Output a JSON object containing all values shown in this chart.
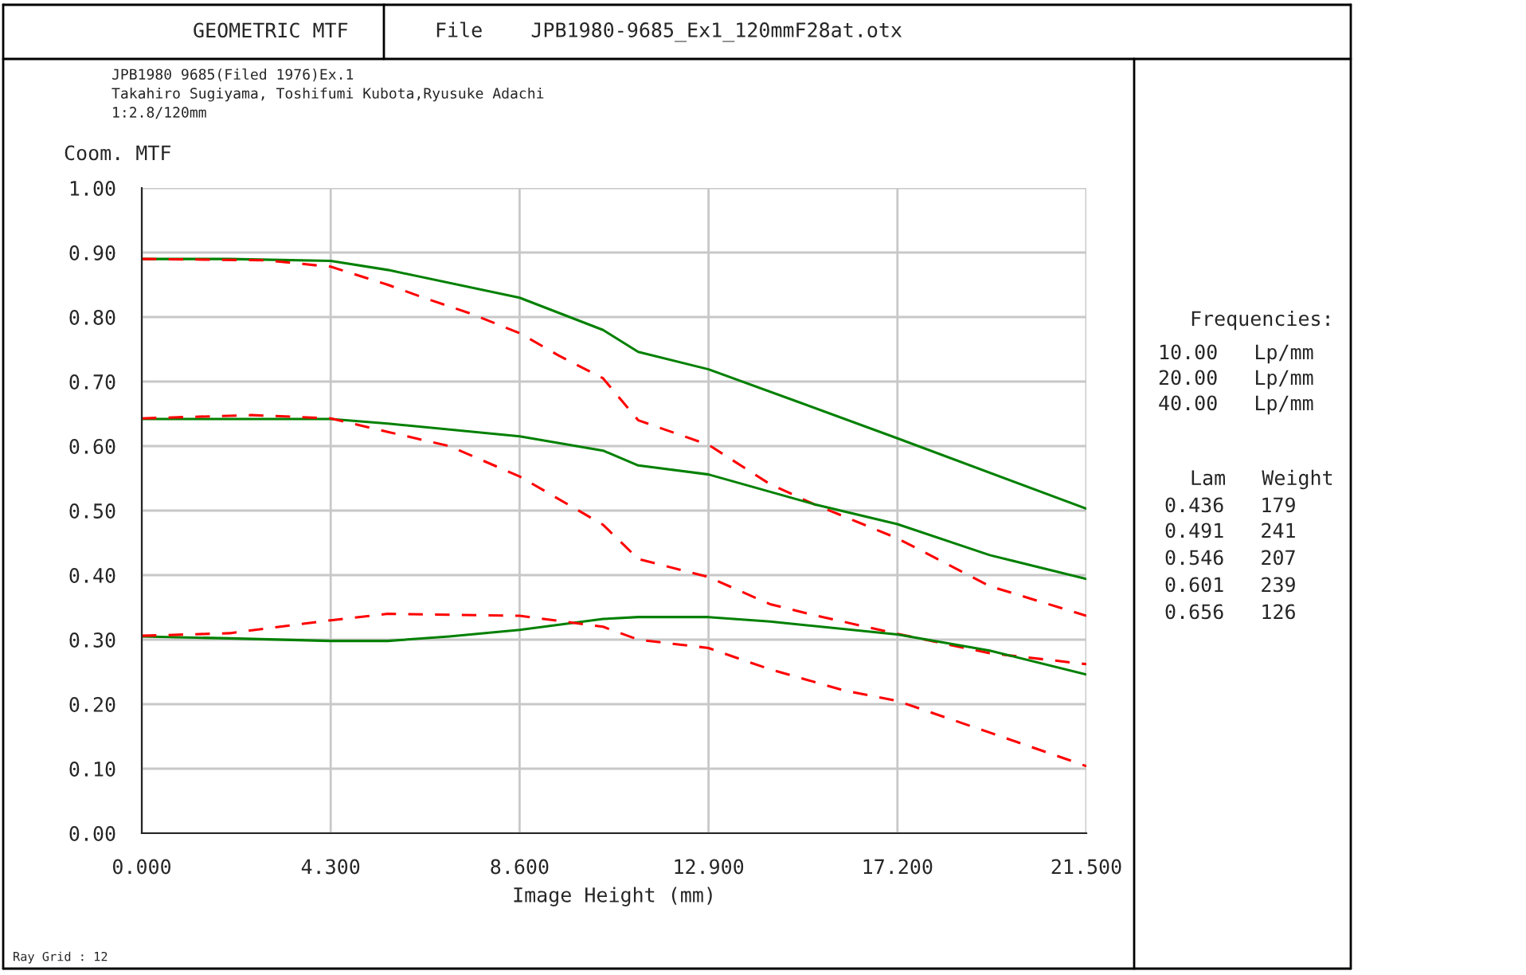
{
  "chart_data": {
    "type": "line",
    "title": "GEOMETRIC MTF",
    "subtitle": "JPB1980 9685(Filed 1976)Ex.1\nTakahiro Sugiyama, Toshifumi Kubota,Ryusuke Adachi\n1:2.8/120mm",
    "xlabel": "Image Height (mm)",
    "ylabel": "Coom. MTF",
    "annotations": [
      "File    JPB1980-9685_Ex1_120mmF28at.otx",
      "Frequencies:",
      "10.00   Lp/mm",
      "20.00   Lp/mm",
      "40.00   Lp/mm",
      "Lam   Weight",
      "0.436   179",
      "0.491   241",
      "0.546   207",
      "0.601   239",
      "0.656   126",
      "Ray Grid : 12"
    ],
    "series": [
      {
        "color": "#008000",
        "line_style": "solid",
        "x": [
          0,
          2,
          4.3,
          5.6,
          8.6,
          10.5,
          11.3,
          12.9,
          15,
          17.2,
          21.5
        ],
        "values": [
          0.89,
          0.89,
          0.887,
          0.873,
          0.83,
          0.78,
          0.746,
          0.719,
          0.667,
          0.612,
          0.503
        ]
      },
      {
        "color": "#ff0000",
        "line_style": "dashed",
        "x": [
          0,
          2.8,
          4.3,
          5.6,
          6.5,
          7.5,
          8.6,
          9.5,
          10.5,
          11.3,
          12.9,
          14.3,
          15.3,
          17.2,
          19.3,
          21.5
        ],
        "values": [
          0.89,
          0.888,
          0.878,
          0.85,
          0.828,
          0.805,
          0.775,
          0.74,
          0.705,
          0.64,
          0.602,
          0.541,
          0.51,
          0.457,
          0.383,
          0.337
        ]
      },
      {
        "color": "#008000",
        "line_style": "solid",
        "x": [
          0,
          4.3,
          5.6,
          8.6,
          10.5,
          11.3,
          12.9,
          15.3,
          17.2,
          19.3,
          21.5
        ],
        "values": [
          0.642,
          0.642,
          0.635,
          0.615,
          0.593,
          0.57,
          0.556,
          0.51,
          0.479,
          0.431,
          0.394
        ]
      },
      {
        "color": "#ff0000",
        "line_style": "dashed",
        "x": [
          0,
          2.5,
          4.3,
          5.6,
          7,
          8.6,
          10.5,
          11.3,
          12.9,
          14.3,
          15.3,
          17.2,
          19.3,
          21.5
        ],
        "values": [
          0.643,
          0.648,
          0.643,
          0.622,
          0.6,
          0.553,
          0.478,
          0.425,
          0.397,
          0.355,
          0.338,
          0.309,
          0.279,
          0.262
        ]
      },
      {
        "color": "#008000",
        "line_style": "solid",
        "x": [
          0,
          2,
          4.3,
          5.6,
          7,
          8.6,
          10.5,
          11.3,
          12.9,
          14.3,
          17.2,
          19.3,
          21.5
        ],
        "values": [
          0.305,
          0.302,
          0.298,
          0.298,
          0.305,
          0.315,
          0.332,
          0.335,
          0.335,
          0.328,
          0.308,
          0.283,
          0.246
        ]
      },
      {
        "color": "#ff0000",
        "line_style": "dashed",
        "x": [
          0,
          2,
          4.3,
          5.6,
          8.6,
          10.5,
          11.3,
          12.9,
          14.3,
          16,
          17.2,
          19.3,
          21.5
        ],
        "values": [
          0.306,
          0.31,
          0.33,
          0.34,
          0.337,
          0.32,
          0.3,
          0.287,
          0.254,
          0.221,
          0.205,
          0.156,
          0.104
        ]
      }
    ],
    "xlim": [
      0,
      21.5
    ],
    "ylim": [
      0,
      1
    ],
    "xticks": [
      {
        "value": 0,
        "label": "0.000"
      },
      {
        "value": 4.3,
        "label": "4.300"
      },
      {
        "value": 8.6,
        "label": "8.600"
      },
      {
        "value": 12.9,
        "label": "12.900"
      },
      {
        "value": 17.2,
        "label": "17.200"
      },
      {
        "value": 21.5,
        "label": "21.500"
      }
    ],
    "yticks": [
      {
        "value": 0,
        "label": "0.00"
      },
      {
        "value": 0.1,
        "label": "0.10"
      },
      {
        "value": 0.2,
        "label": "0.20"
      },
      {
        "value": 0.3,
        "label": "0.30"
      },
      {
        "value": 0.4,
        "label": "0.40"
      },
      {
        "value": 0.5,
        "label": "0.50"
      },
      {
        "value": 0.6,
        "label": "0.60"
      },
      {
        "value": 0.7,
        "label": "0.70"
      },
      {
        "value": 0.8,
        "label": "0.80"
      },
      {
        "value": 0.9,
        "label": "0.90"
      },
      {
        "value": 1,
        "label": "1.00"
      }
    ],
    "grid": true,
    "legend": false
  }
}
